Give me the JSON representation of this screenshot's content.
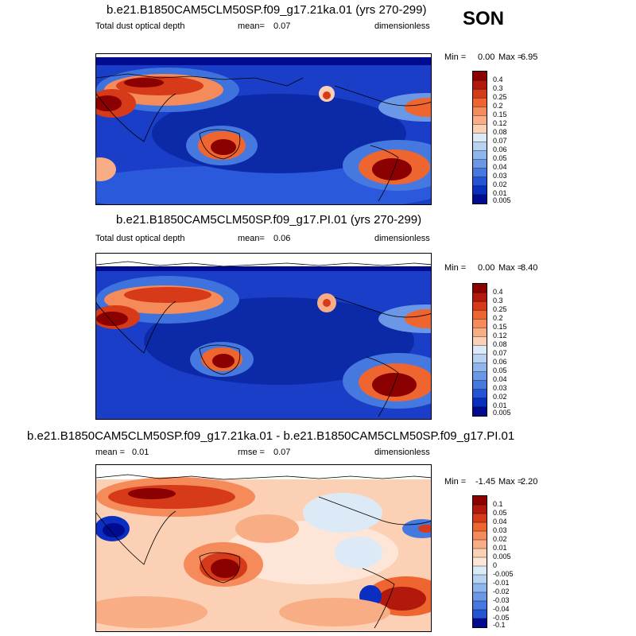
{
  "season": "SON",
  "panels": [
    {
      "title": "b.e21.B1850CAM5CLM50SP.f09_g17.21ka.01 (yrs 270-299)",
      "left_label": "Total dust optical depth",
      "mean_label": "mean=",
      "mean_value": "0.07",
      "units": "dimensionless",
      "min_label": "Min =",
      "min_value": "0.00",
      "max_label": "Max =",
      "max_value": "6.95",
      "levels": [
        "0.4",
        "0.3",
        "0.25",
        "0.2",
        "0.15",
        "0.12",
        "0.08",
        "0.07",
        "0.06",
        "0.05",
        "0.04",
        "0.03",
        "0.02",
        "0.01",
        "0.005"
      ]
    },
    {
      "title": "b.e21.B1850CAM5CLM50SP.f09_g17.PI.01 (yrs 270-299)",
      "left_label": "Total dust optical depth",
      "mean_label": "mean=",
      "mean_value": "0.06",
      "units": "dimensionless",
      "min_label": "Min =",
      "min_value": "0.00",
      "max_label": "Max =",
      "max_value": "8.40",
      "levels": [
        "0.4",
        "0.3",
        "0.25",
        "0.2",
        "0.15",
        "0.12",
        "0.08",
        "0.07",
        "0.06",
        "0.05",
        "0.04",
        "0.03",
        "0.02",
        "0.01",
        "0.005"
      ]
    },
    {
      "title": "b.e21.B1850CAM5CLM50SP.f09_g17.21ka.01 - b.e21.B1850CAM5CLM50SP.f09_g17.PI.01",
      "left_label": "mean =",
      "left_value": "0.01",
      "mean_label": "rmse =",
      "mean_value": "0.07",
      "units": "dimensionless",
      "min_label": "Min =",
      "min_value": "-1.45",
      "max_label": "Max =",
      "max_value": "2.20",
      "levels": [
        "0.1",
        "0.05",
        "0.04",
        "0.03",
        "0.02",
        "0.01",
        "0.005",
        "0",
        "-0.005",
        "-0.01",
        "-0.02",
        "-0.03",
        "-0.04",
        "-0.05",
        "-0.1"
      ]
    }
  ],
  "colors": {
    "seq": [
      "#8b0000",
      "#b2180c",
      "#d73a18",
      "#ef6530",
      "#f58a5a",
      "#f8ad85",
      "#fbd0b4",
      "#dce9f7",
      "#b8d2f2",
      "#8fb5ec",
      "#6a98e6",
      "#4579df",
      "#2254d4",
      "#0a2fc0",
      "#000b8f"
    ],
    "diff": [
      "#8b0000",
      "#b2180c",
      "#d73a18",
      "#ef6530",
      "#f58a5a",
      "#f8ad85",
      "#fbd0b4",
      "#fde6d8",
      "#dce9f7",
      "#b8d2f2",
      "#8fb5ec",
      "#6a98e6",
      "#4579df",
      "#2254d4",
      "#000b8f"
    ],
    "white": "#ffffff",
    "coast": "#000000"
  }
}
